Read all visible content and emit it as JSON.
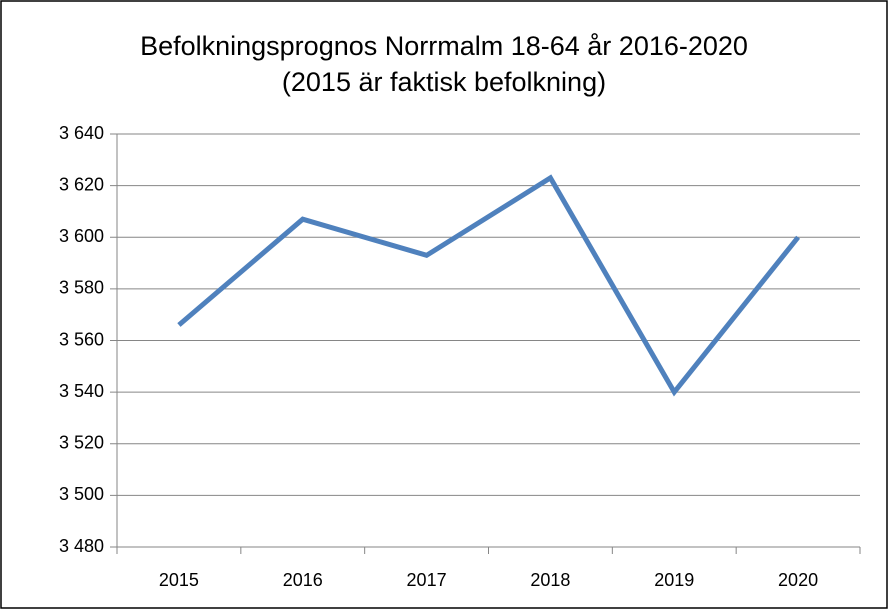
{
  "chart_data": {
    "type": "line",
    "title": "Befolkningsprognos Norrmalm 18-64 år 2016-2020 (2015 är faktisk befolkning)",
    "categories": [
      "2015",
      "2016",
      "2017",
      "2018",
      "2019",
      "2020"
    ],
    "values": [
      3566,
      3607,
      3593,
      3623,
      3540,
      3600
    ],
    "color": "#4f81bd",
    "ylim": [
      3480,
      3640
    ],
    "yticks": [
      {
        "value": 3480,
        "label": "3 480"
      },
      {
        "value": 3500,
        "label": "3 500"
      },
      {
        "value": 3520,
        "label": "3 520"
      },
      {
        "value": 3540,
        "label": "3 540"
      },
      {
        "value": 3560,
        "label": "3 560"
      },
      {
        "value": 3580,
        "label": "3 580"
      },
      {
        "value": 3600,
        "label": "3 600"
      },
      {
        "value": 3620,
        "label": "3 620"
      },
      {
        "value": 3640,
        "label": "3 640"
      }
    ],
    "grid": true
  }
}
